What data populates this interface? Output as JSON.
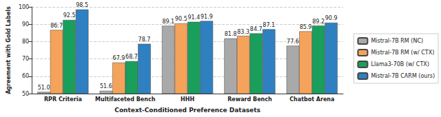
{
  "chart_data": {
    "type": "bar",
    "x_label": "Context-Conditioned Preference Datasets",
    "y_label": "Agreement with Gold Labels",
    "categories": [
      "RPR Criteria",
      "Multifaceted Bench",
      "HHH",
      "Reward Bench",
      "Chatbot Arena"
    ],
    "series": [
      {
        "name": "Mistral-7B RM (NC)",
        "color": "#a9a9a9",
        "values": [
          51.0,
          51.6,
          89.1,
          81.8,
          77.6
        ],
        "value_labels": [
          "51.0",
          "51.6",
          "89.1",
          "81.8",
          "77.6"
        ]
      },
      {
        "name": "Mistral-7B RM (w/ CTX)",
        "color": "#f5a35a",
        "values": [
          86.7,
          67.9,
          90.5,
          83.3,
          85.9
        ],
        "value_labels": [
          "86.7",
          "67.9",
          "90.5",
          "83.3",
          "85.9"
        ]
      },
      {
        "name": "Llama3-70B (w/ CTX)",
        "color": "#1a9e5c",
        "values": [
          92.5,
          68.7,
          91.4,
          84.7,
          89.2
        ],
        "value_labels": [
          "92.5",
          "68.7",
          "91.4",
          "84.7",
          "89.2"
        ]
      },
      {
        "name": "Mistral-7B CARM (ours)",
        "color": "#2f80c0",
        "values": [
          98.5,
          78.7,
          91.9,
          87.1,
          90.9
        ],
        "value_labels": [
          "98.5",
          "78.7",
          "91.9",
          "87.1",
          "90.9"
        ]
      }
    ],
    "ylim": [
      50,
      100
    ],
    "yticks": [
      50,
      60,
      70,
      80,
      90,
      100
    ],
    "grid": true,
    "legend": "right",
    "data_labels": true
  }
}
